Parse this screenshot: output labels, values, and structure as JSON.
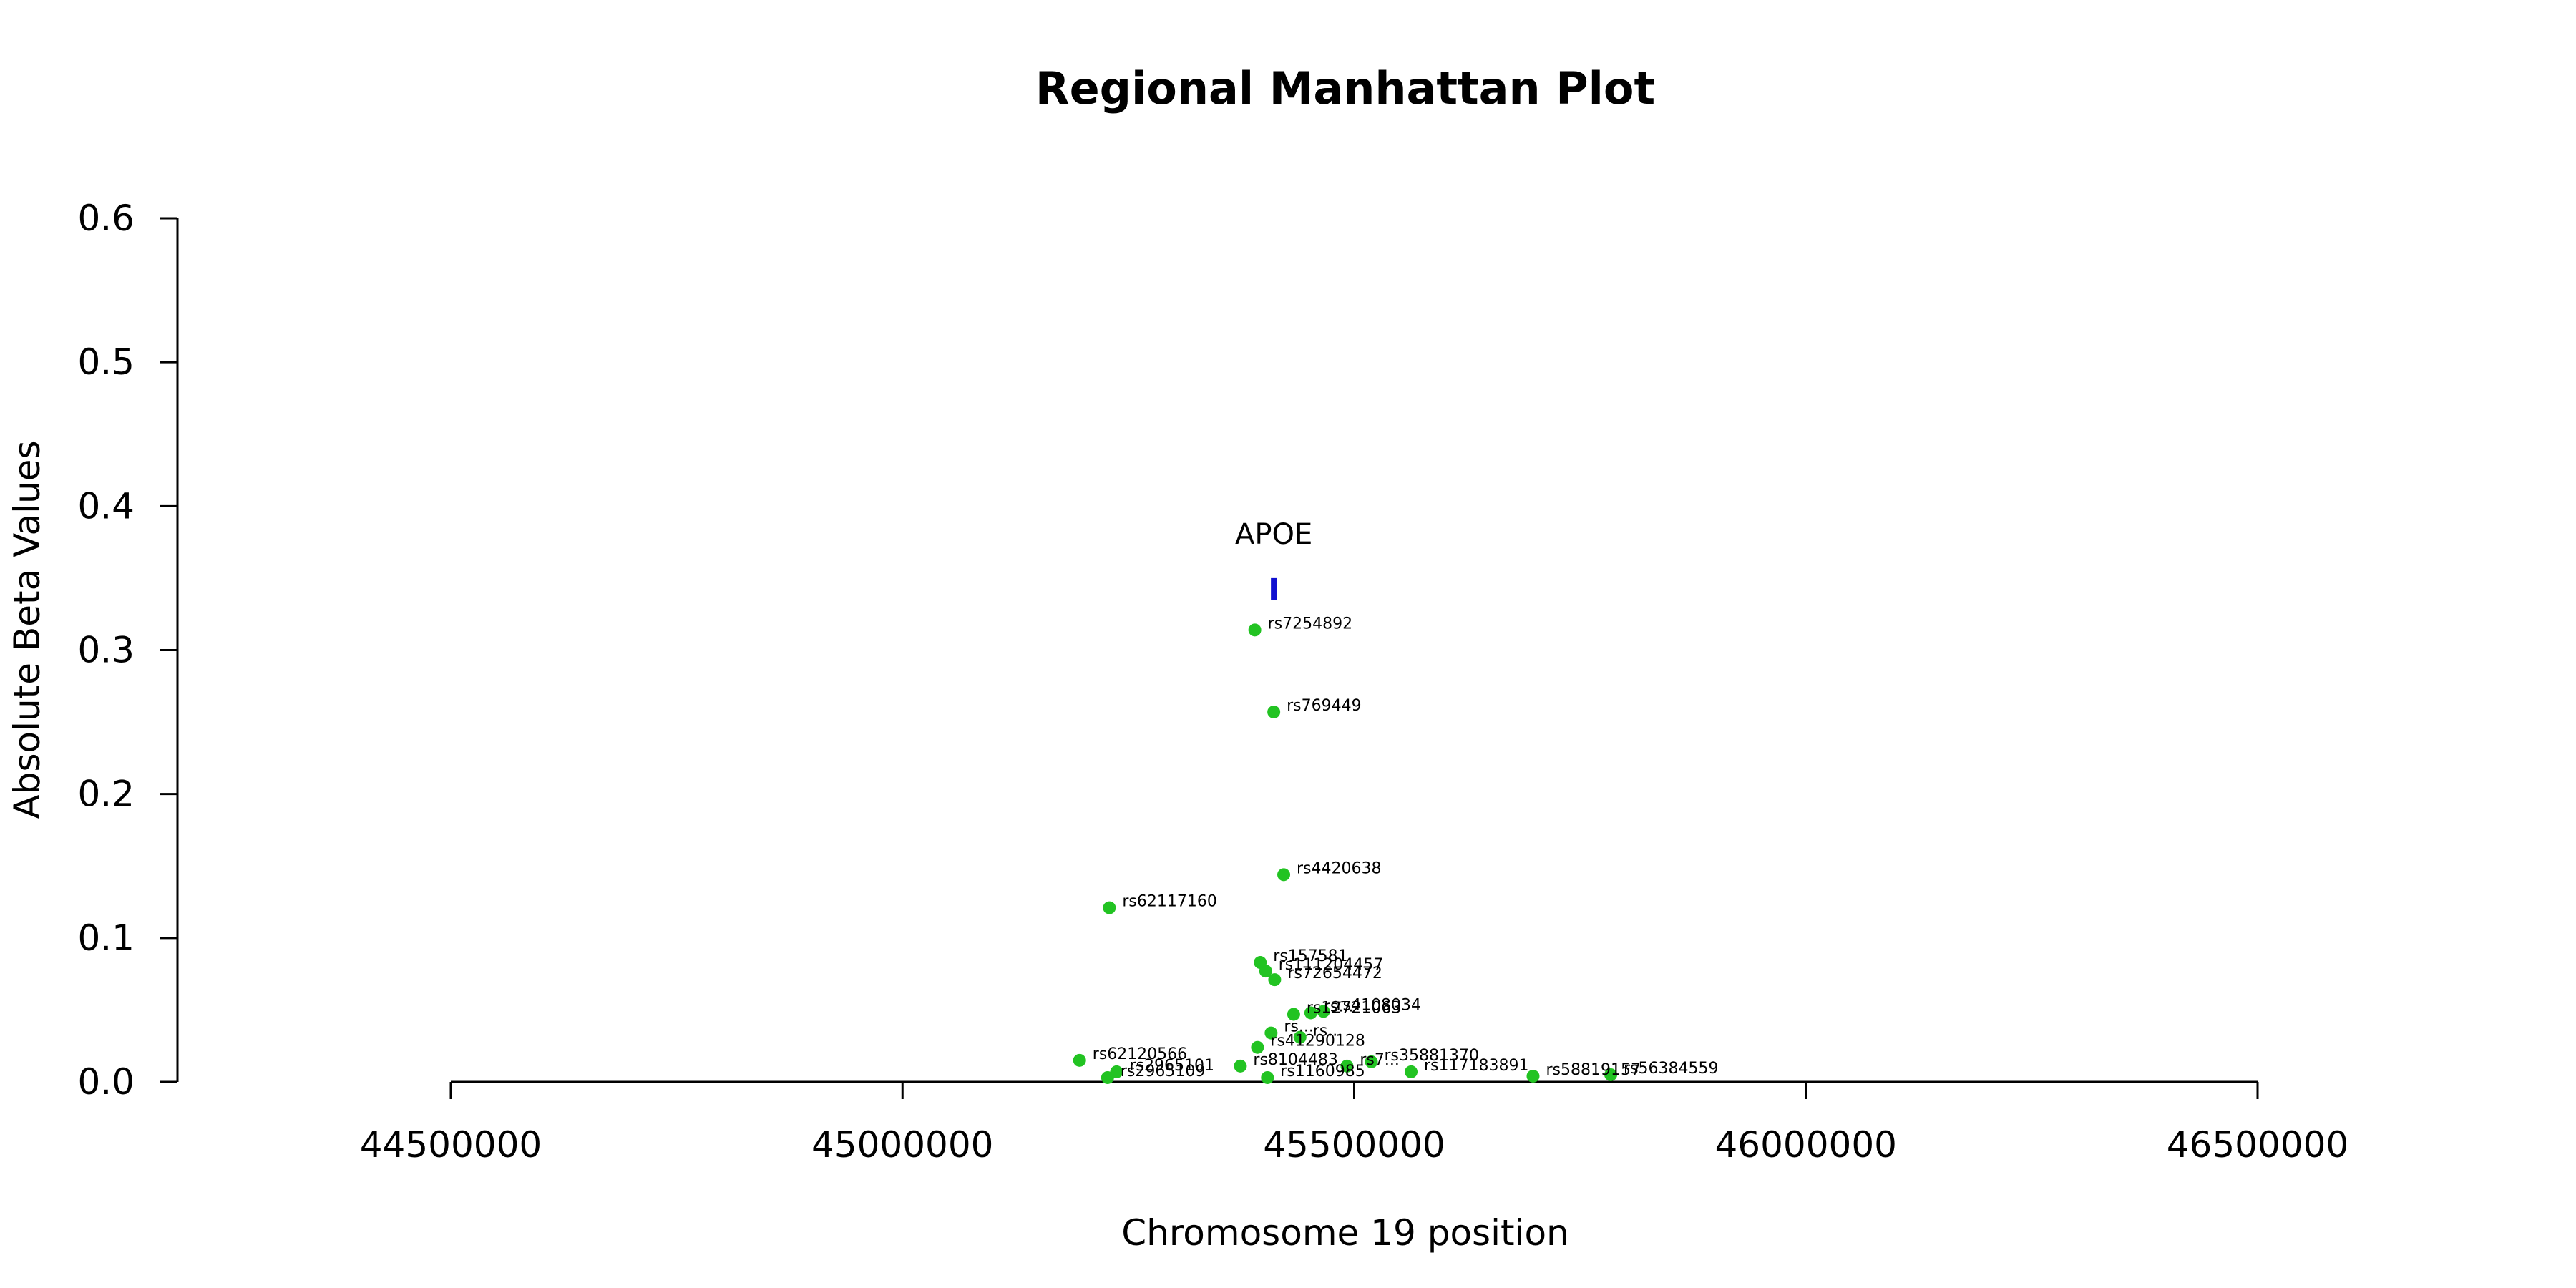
{
  "chart_data": {
    "type": "scatter",
    "title": "Regional Manhattan Plot",
    "xlabel": "Chromosome 19 position",
    "ylabel": "Absolute Beta Values",
    "xlim": [
      44500000,
      46500000
    ],
    "ylim": [
      0,
      0.6
    ],
    "x_ticks": [
      44500000,
      45000000,
      45500000,
      46000000,
      46500000
    ],
    "y_ticks": [
      0.0,
      0.1,
      0.2,
      0.3,
      0.4,
      0.5,
      0.6
    ],
    "x_tick_labels": [
      "44500000",
      "45000000",
      "45500000",
      "46000000",
      "46500000"
    ],
    "y_tick_labels": [
      "0.0",
      "0.1",
      "0.2",
      "0.3",
      "0.4",
      "0.5",
      "0.6"
    ],
    "point_color": "#22c322",
    "gene_color": "#1010d0",
    "genes": [
      {
        "name": "APOE",
        "x": 45411000,
        "y_range": [
          0.335,
          0.35
        ]
      }
    ],
    "points": [
      {
        "label": "rs7254892",
        "x": 45390000,
        "y": 0.314
      },
      {
        "label": "rs769449",
        "x": 45411000,
        "y": 0.257
      },
      {
        "label": "rs4420638",
        "x": 45422000,
        "y": 0.144
      },
      {
        "label": "rs62117160",
        "x": 45229000,
        "y": 0.121
      },
      {
        "label": "rs157581",
        "x": 45396000,
        "y": 0.083
      },
      {
        "label": "rs111204457",
        "x": 45402000,
        "y": 0.077
      },
      {
        "label": "rs72654472",
        "x": 45412000,
        "y": 0.071
      },
      {
        "label": "rs12721063",
        "x": 45433000,
        "y": 0.047
      },
      {
        "label": "rs...",
        "x": 45452000,
        "y": 0.048
      },
      {
        "label": "rs4108034",
        "x": 45466000,
        "y": 0.049
      },
      {
        "label": "rs...",
        "x": 45408000,
        "y": 0.034
      },
      {
        "label": "rs...",
        "x": 45440000,
        "y": 0.031
      },
      {
        "label": "rs41290128",
        "x": 45393000,
        "y": 0.024
      },
      {
        "label": "rs62120566",
        "x": 45196000,
        "y": 0.015
      },
      {
        "label": "rs2965101",
        "x": 45237000,
        "y": 0.007
      },
      {
        "label": "rs2965109",
        "x": 45227000,
        "y": 0.003
      },
      {
        "label": "rs8104483",
        "x": 45374000,
        "y": 0.011
      },
      {
        "label": "rs1160985",
        "x": 45404000,
        "y": 0.003
      },
      {
        "label": "rs7...",
        "x": 45492000,
        "y": 0.011
      },
      {
        "label": "rs35881370",
        "x": 45519000,
        "y": 0.014
      },
      {
        "label": "rs117183891",
        "x": 45563000,
        "y": 0.007
      },
      {
        "label": "rs58819157",
        "x": 45698000,
        "y": 0.004
      },
      {
        "label": "rs56384559",
        "x": 45784000,
        "y": 0.005
      }
    ]
  }
}
